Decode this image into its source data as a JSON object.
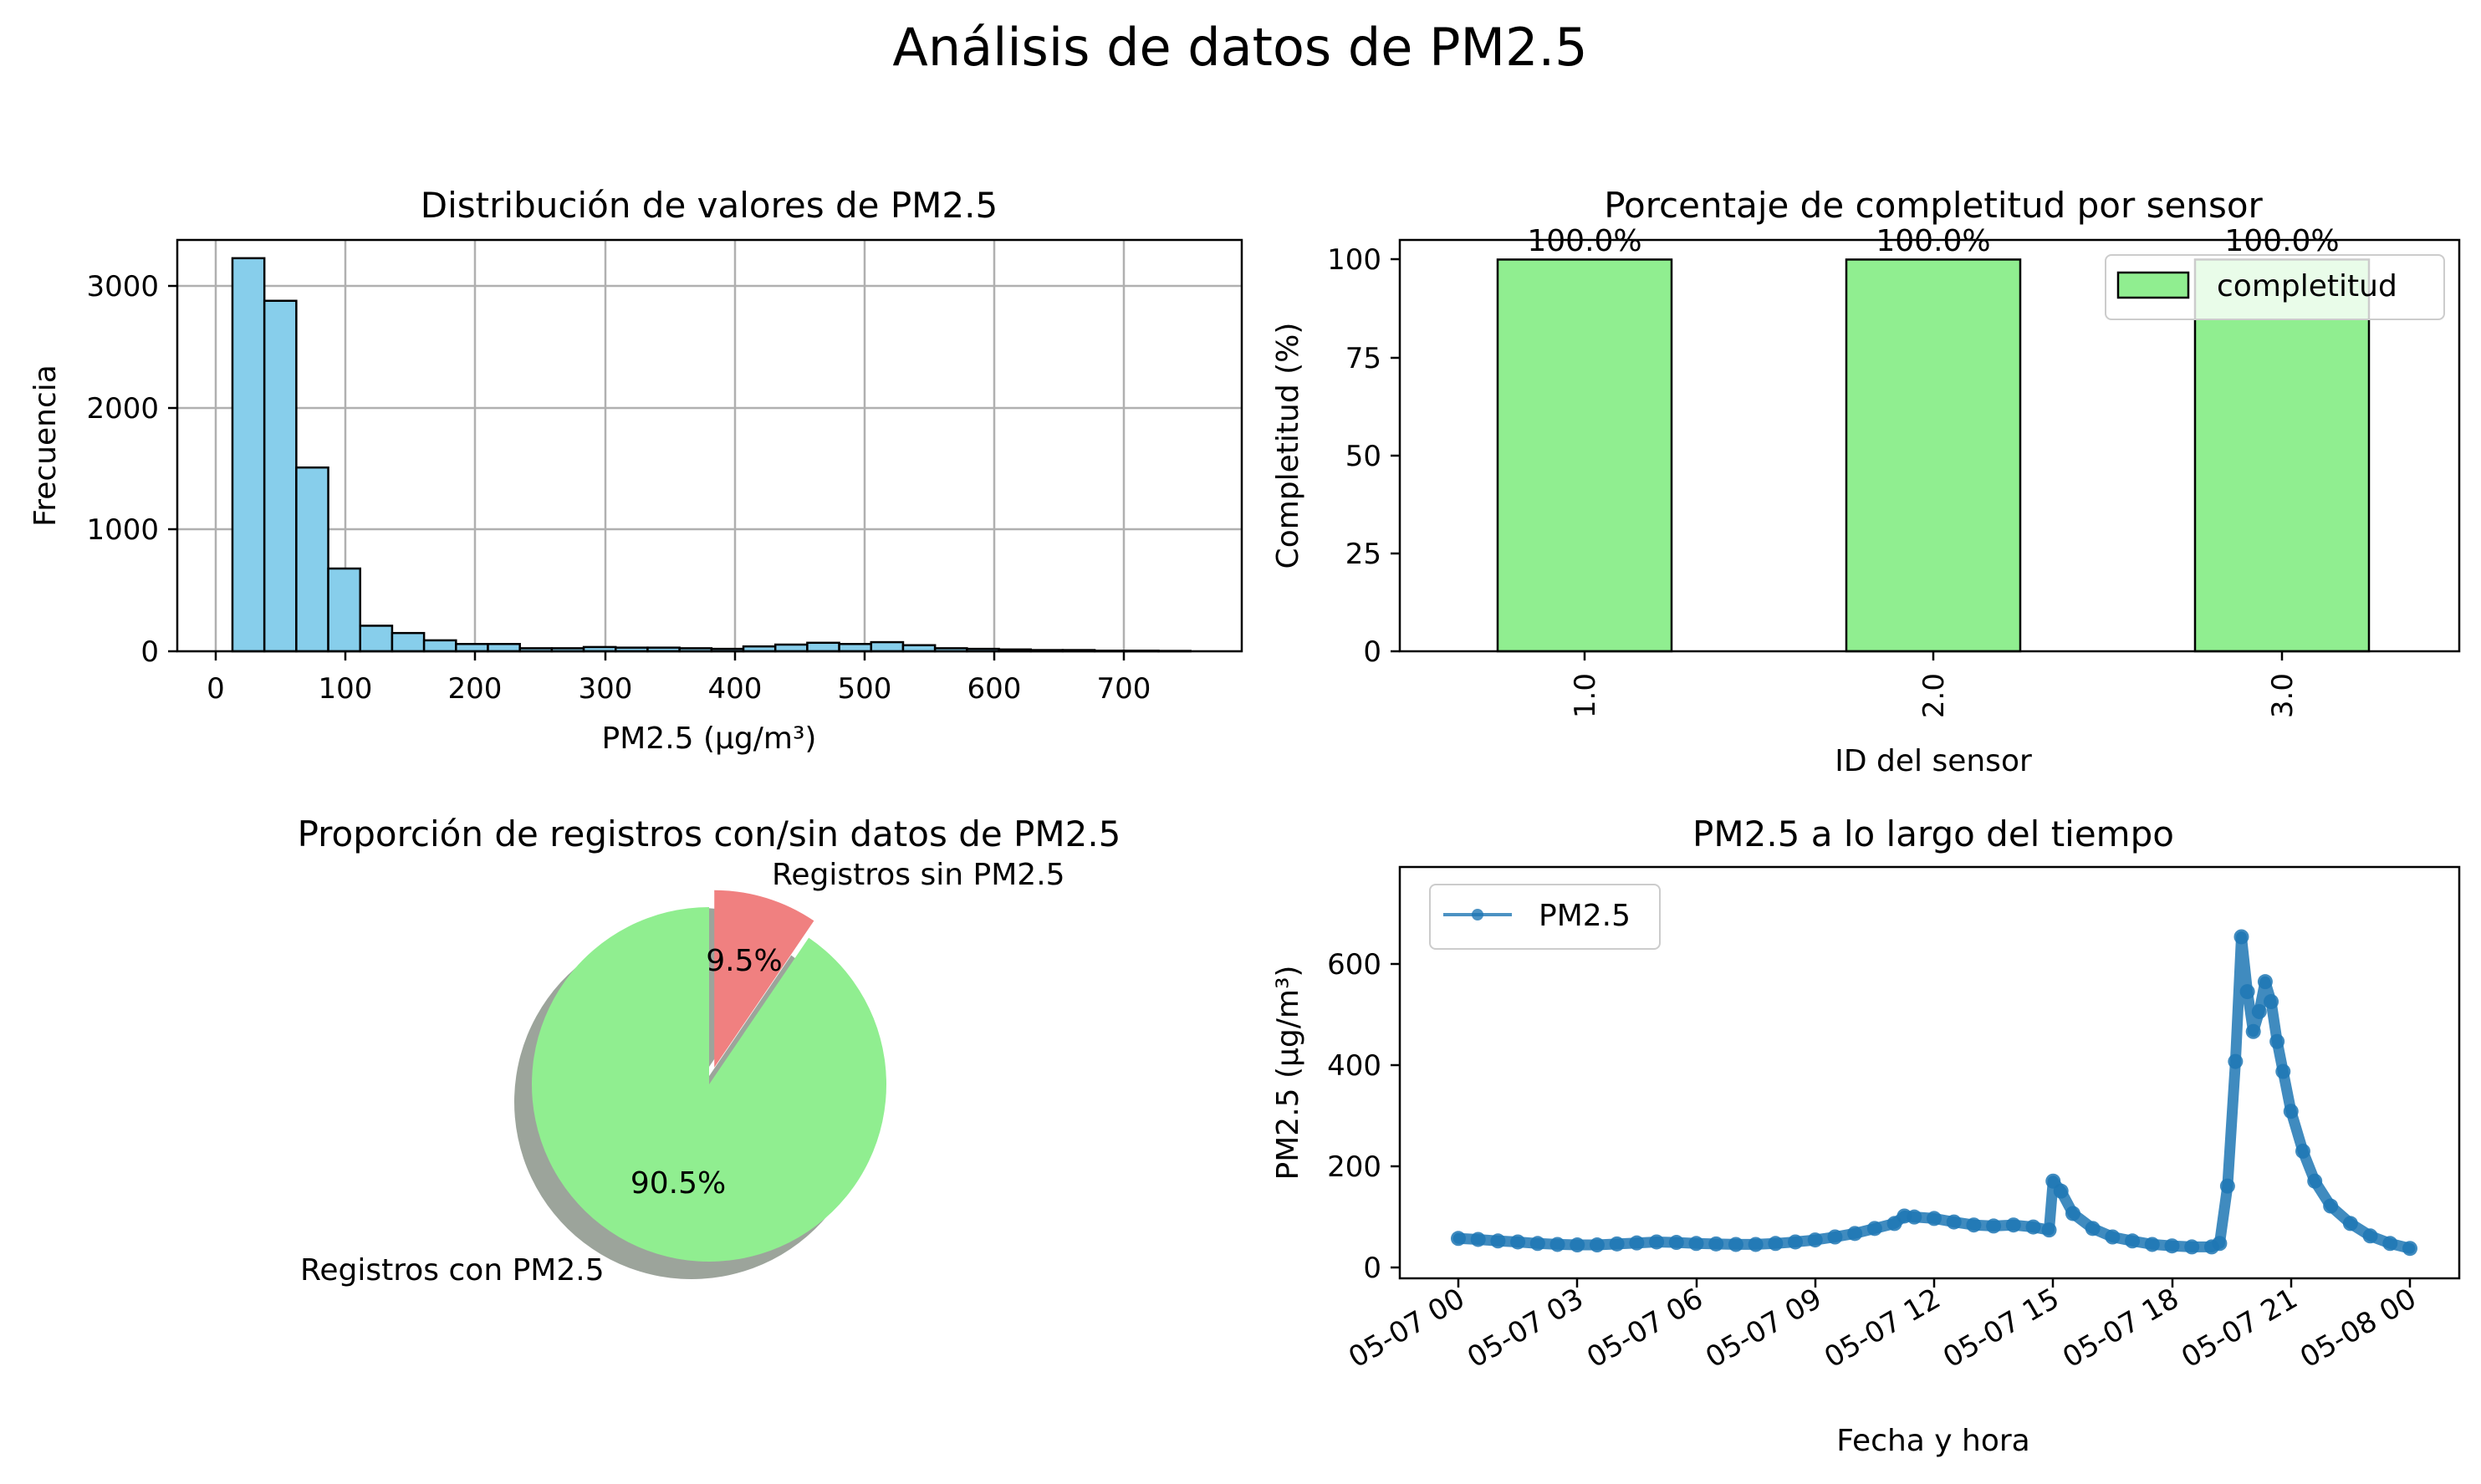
{
  "figure_title": "Análisis de datos de PM2.5",
  "colors": {
    "hist_bar": "#87ceeb",
    "completeness_bar": "#90ee90",
    "pie_with": "#90ee90",
    "pie_without": "#f08080",
    "line": "#1f77b4"
  },
  "chart_data": [
    {
      "type": "bar",
      "subtype": "histogram",
      "title": "Distribución de valores de PM2.5",
      "xlabel": "PM2.5 (μg/m³)",
      "ylabel": "Frecuencia",
      "xlim": [
        -30,
        790
      ],
      "ylim": [
        0,
        3380
      ],
      "xticks": [
        0,
        100,
        200,
        300,
        400,
        500,
        600,
        700
      ],
      "yticks": [
        0,
        1000,
        2000,
        3000
      ],
      "grid": true,
      "bin_edges": [
        12.5,
        37.1,
        61.7,
        86.3,
        110.9,
        135.5,
        160.1,
        184.7,
        209.3,
        233.9,
        258.5,
        283.1,
        307.7,
        332.3,
        356.9,
        381.5,
        406.1,
        430.7,
        455.3,
        479.9,
        504.5,
        529.1,
        553.7,
        578.3,
        602.9,
        627.5,
        652.1,
        676.7,
        701.3,
        725.9,
        750.5
      ],
      "values": [
        3230,
        2880,
        1510,
        680,
        210,
        150,
        90,
        60,
        60,
        25,
        25,
        35,
        30,
        30,
        25,
        20,
        40,
        55,
        70,
        60,
        75,
        50,
        25,
        20,
        15,
        10,
        10,
        5,
        5,
        3
      ]
    },
    {
      "type": "bar",
      "title": "Porcentaje de completitud por sensor",
      "xlabel": "ID del sensor",
      "ylabel": "Completitud (%)",
      "categories": [
        "1.0",
        "2.0",
        "3.0"
      ],
      "series": [
        {
          "name": "completitud",
          "values": [
            100.0,
            100.0,
            100.0
          ]
        }
      ],
      "data_labels": [
        "100.0%",
        "100.0%",
        "100.0%"
      ],
      "ylim": [
        0,
        105
      ],
      "yticks": [
        0,
        25,
        50,
        75,
        100
      ],
      "legend": "top-right",
      "grid": false
    },
    {
      "type": "pie",
      "title": "Proporción de registros con/sin datos de PM2.5",
      "labels": [
        "Registros con PM2.5",
        "Registros sin PM2.5"
      ],
      "values": [
        90.5,
        9.5
      ],
      "pct_labels": [
        "90.5%",
        "9.5%"
      ],
      "explode": [
        0,
        0.1
      ],
      "shadow": true,
      "startangle": 90
    },
    {
      "type": "line",
      "title": "PM2.5 a lo largo del tiempo",
      "xlabel": "Fecha y hora",
      "ylabel": "PM2.5 (μg/m³)",
      "xticks": [
        "05-07 00",
        "05-07 03",
        "05-07 06",
        "05-07 09",
        "05-07 12",
        "05-07 15",
        "05-07 18",
        "05-07 21",
        "05-08 00"
      ],
      "xlim": [
        "05-06 23:00",
        "05-08 01:00"
      ],
      "ylim": [
        -35,
        790
      ],
      "yticks": [
        0,
        200,
        400,
        600
      ],
      "legend": "top-left",
      "series": [
        {
          "name": "PM2.5",
          "x_hours": [
            0,
            0.5,
            1,
            1.5,
            2,
            2.5,
            3,
            3.5,
            4,
            4.5,
            5,
            5.5,
            6,
            6.5,
            7,
            7.5,
            8,
            8.5,
            9,
            9.5,
            10,
            10.5,
            11,
            11.25,
            11.5,
            12,
            12.5,
            13,
            13.5,
            14,
            14.5,
            14.9,
            15,
            15.2,
            15.5,
            16,
            16.5,
            17,
            17.5,
            18,
            18.5,
            19,
            19.2,
            19.4,
            19.6,
            19.75,
            19.9,
            20.05,
            20.2,
            20.35,
            20.5,
            20.65,
            20.8,
            21,
            21.3,
            21.6,
            22,
            22.5,
            23,
            23.5,
            24
          ],
          "y": [
            45,
            43,
            40,
            38,
            35,
            33,
            32,
            32,
            34,
            36,
            38,
            37,
            35,
            34,
            33,
            33,
            35,
            38,
            42,
            48,
            55,
            65,
            75,
            90,
            88,
            85,
            78,
            72,
            70,
            72,
            68,
            62,
            160,
            140,
            95,
            65,
            48,
            40,
            33,
            30,
            28,
            28,
            35,
            150,
            400,
            650,
            540,
            460,
            500,
            560,
            520,
            440,
            380,
            300,
            220,
            160,
            110,
            75,
            50,
            35,
            25
          ]
        }
      ]
    }
  ]
}
